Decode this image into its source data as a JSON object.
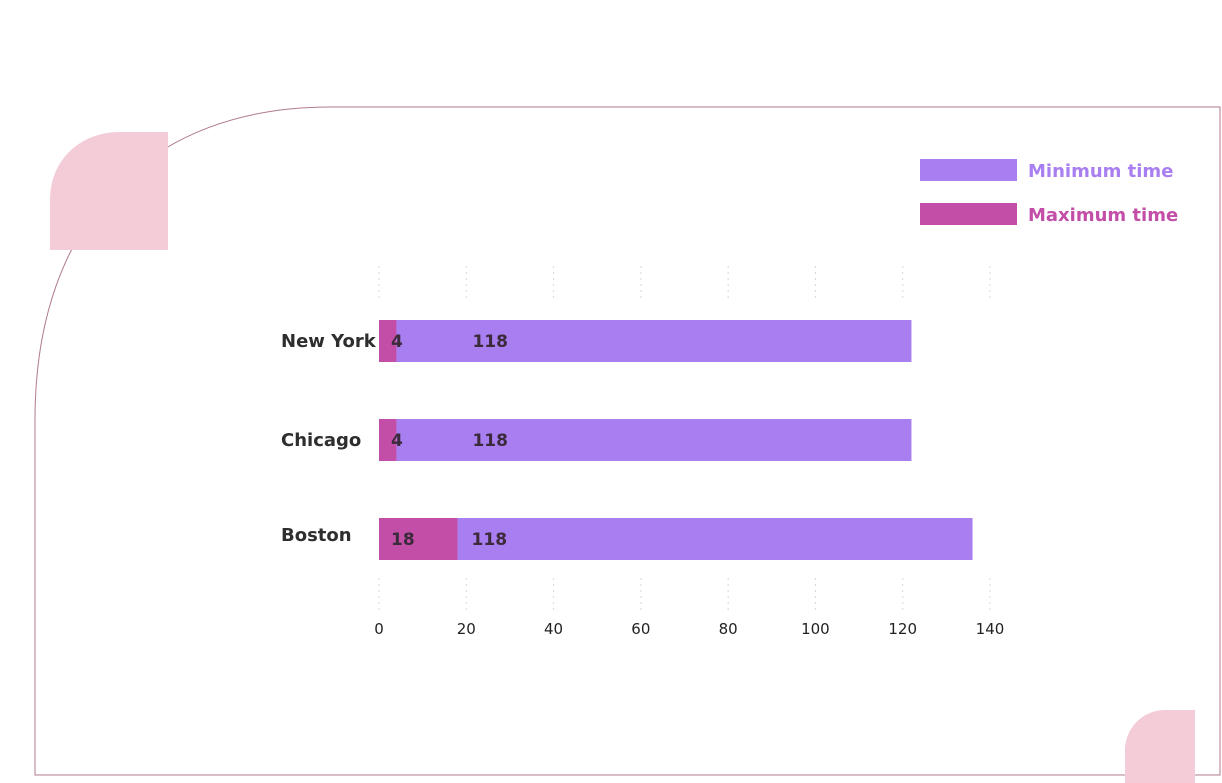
{
  "chart_data": {
    "type": "bar",
    "orientation": "horizontal",
    "stacked": true,
    "categories": [
      "New York",
      "Chicago",
      "Boston"
    ],
    "series": [
      {
        "name": "Maximum time",
        "values": [
          4,
          4,
          18
        ],
        "color": "#c24ea8"
      },
      {
        "name": "Minimum time",
        "values": [
          118,
          118,
          118
        ],
        "color": "#a87ef0"
      }
    ],
    "xlim": [
      0,
      140
    ],
    "xticks": [
      0,
      20,
      40,
      60,
      80,
      100,
      120,
      140
    ],
    "xlabel": "",
    "ylabel": "",
    "title": "",
    "legend": {
      "placement": "top-right",
      "order": [
        "Minimum time",
        "Maximum time"
      ]
    },
    "grid": "vertical-dotted"
  },
  "colors": {
    "decor_pink": "#f3ccd8",
    "frame_line": "#b07a8e",
    "grid": "#d8d8d8"
  }
}
